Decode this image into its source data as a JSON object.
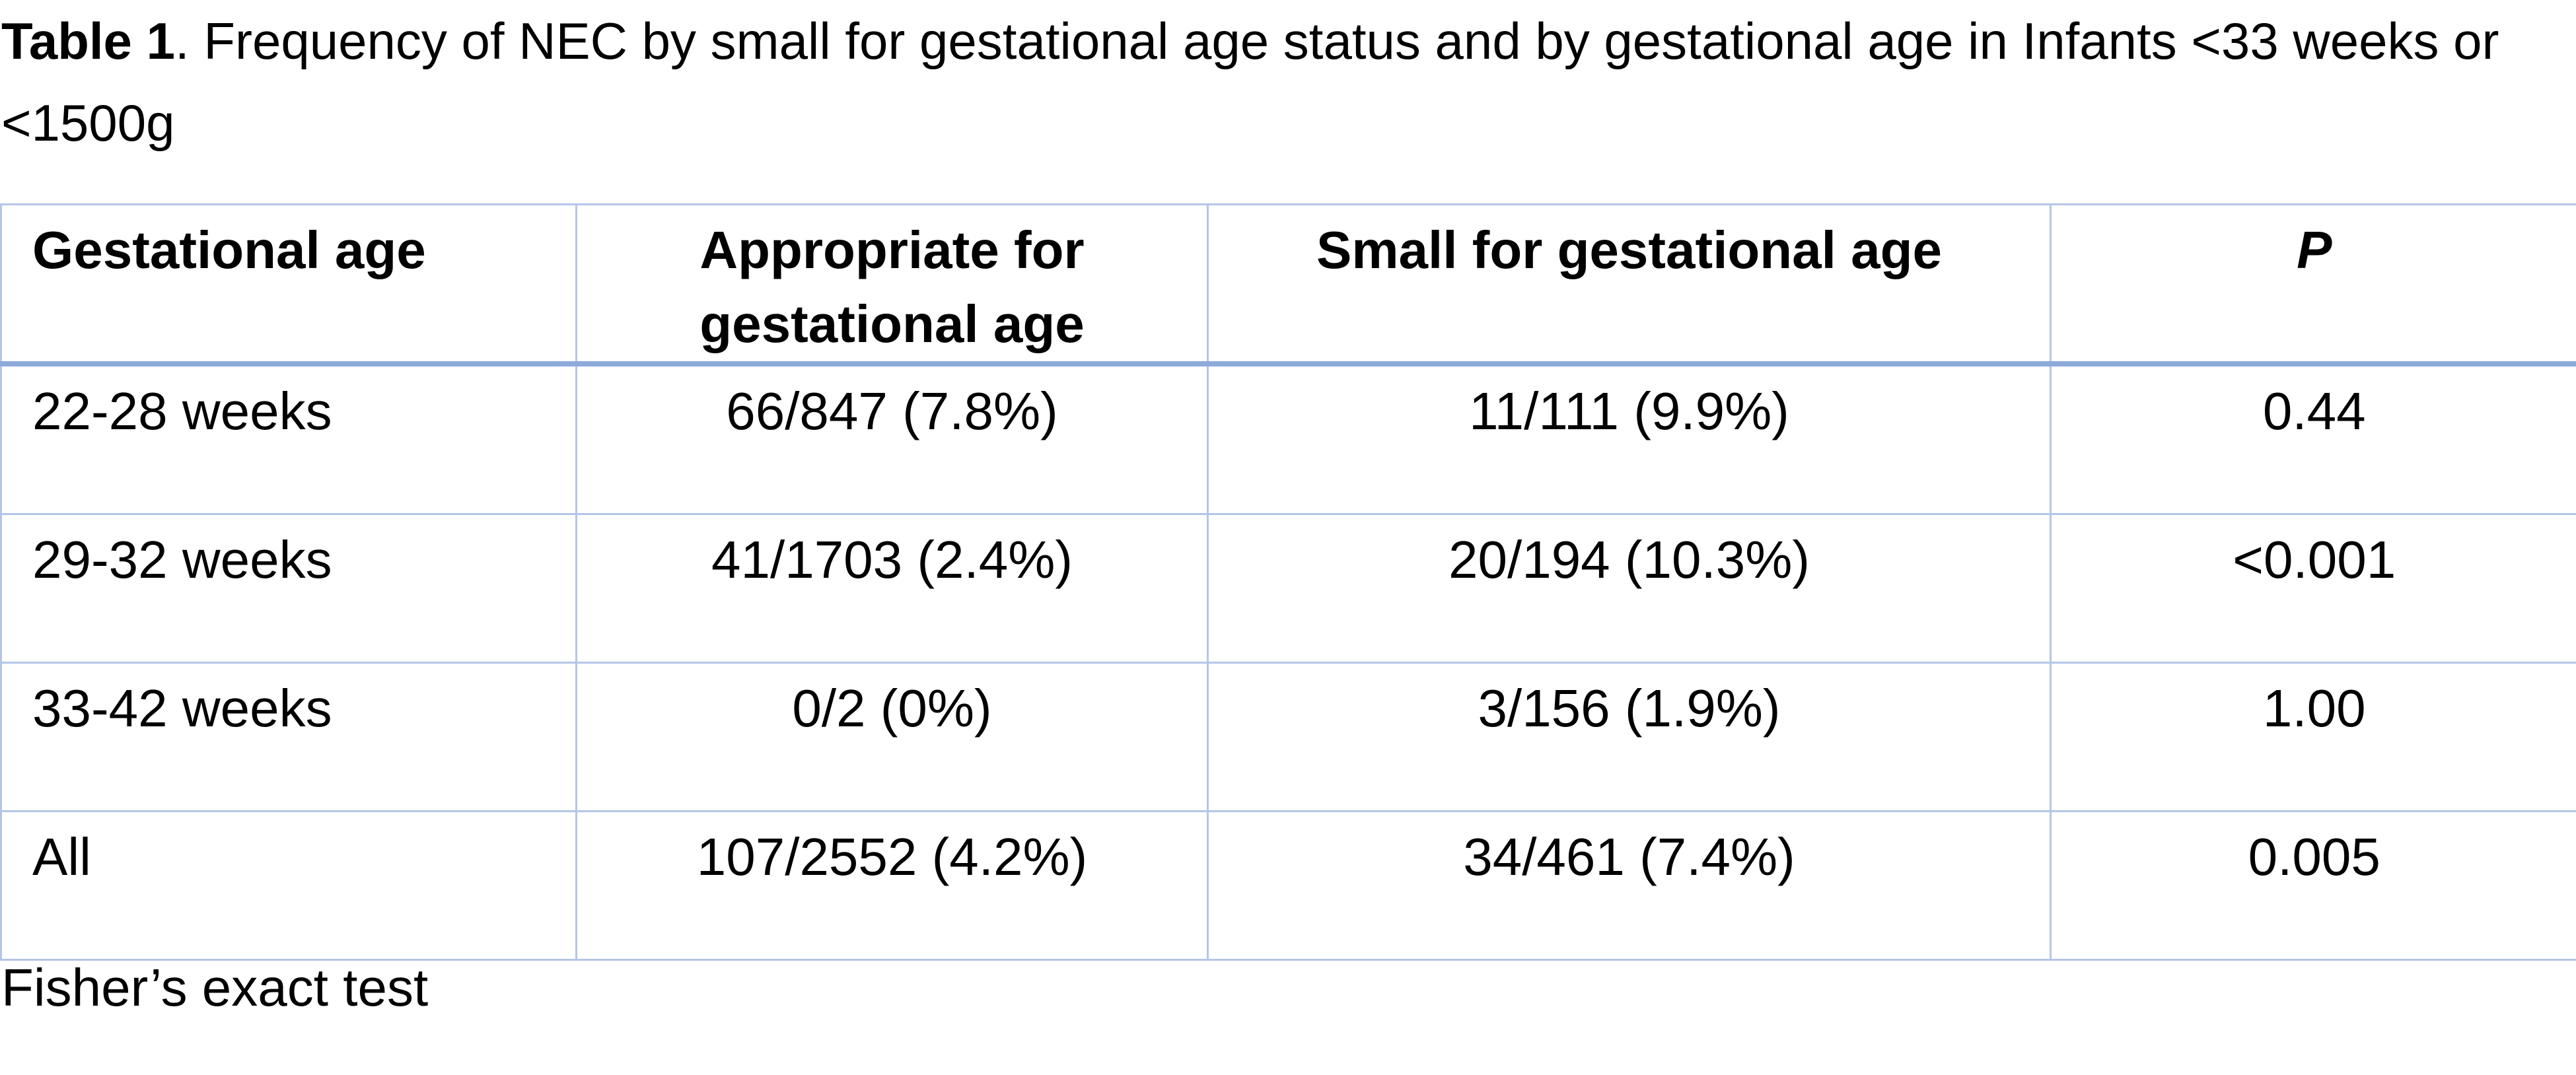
{
  "caption": {
    "label": "Table 1",
    "text": ". Frequency of NEC by small for gestational age status and by gestational age in Infants <33 weeks or <1500g"
  },
  "table": {
    "headers": [
      "Gestational age",
      "Appropriate for gestational age",
      "Small for gestational age",
      "P"
    ],
    "rows": [
      [
        "22-28 weeks",
        "66/847 (7.8%)",
        "11/111 (9.9%)",
        "0.44"
      ],
      [
        "29-32 weeks",
        "41/1703 (2.4%)",
        "20/194 (10.3%)",
        "<0.001"
      ],
      [
        "33-42 weeks",
        "0/2 (0%)",
        "3/156 (1.9%)",
        "1.00"
      ],
      [
        "All",
        "107/2552 (4.2%)",
        "34/461 (7.4%)",
        "0.005"
      ]
    ]
  },
  "footnote": "Fisher’s exact test",
  "colors": {
    "grid": "#b4c6e7",
    "header_rule": "#8eaadb",
    "text": "#000000"
  }
}
